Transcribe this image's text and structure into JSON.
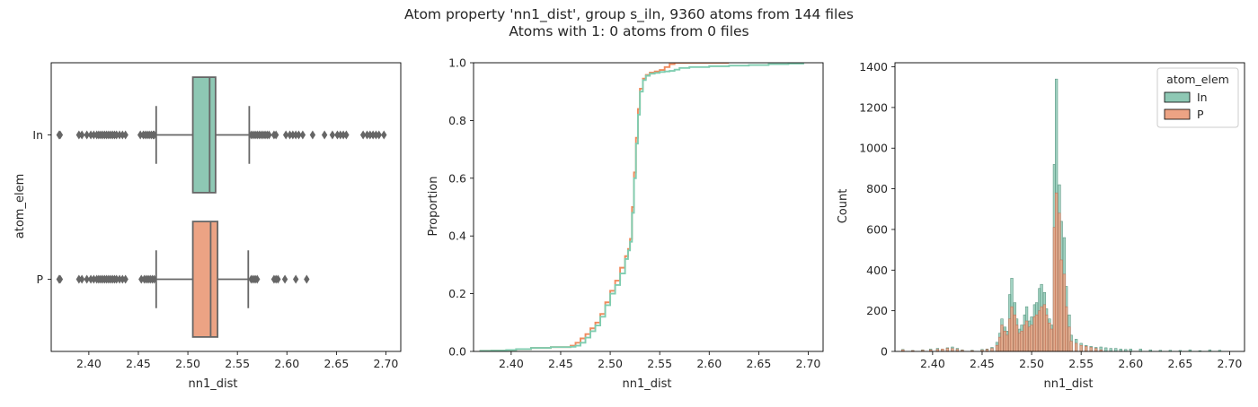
{
  "figure": {
    "title_line1": "Atom property 'nn1_dist', group s_iln, 9360 atoms from 144 files",
    "title_line2": "Atoms with 1: 0 atoms from 0 files"
  },
  "colors": {
    "In": "#8ec8b4",
    "P": "#eca384",
    "ecdf_In": "#7fcdb0",
    "ecdf_P": "#f08a5d",
    "whisker": "#666666"
  },
  "chart_data": [
    {
      "type": "box",
      "xlabel": "nn1_dist",
      "ylabel": "atom_elem",
      "xlim": [
        2.362,
        2.715
      ],
      "xticks": [
        "2.40",
        "2.45",
        "2.50",
        "2.55",
        "2.60",
        "2.65",
        "2.70"
      ],
      "categories": [
        "In",
        "P"
      ],
      "boxes": [
        {
          "name": "In",
          "whisker_low": 2.468,
          "q1": 2.505,
          "median": 2.522,
          "q3": 2.528,
          "whisker_high": 2.562,
          "outliers": [
            2.37,
            2.371,
            2.39,
            2.393,
            2.398,
            2.402,
            2.405,
            2.408,
            2.41,
            2.412,
            2.414,
            2.416,
            2.418,
            2.42,
            2.422,
            2.424,
            2.426,
            2.428,
            2.431,
            2.434,
            2.437,
            2.452,
            2.455,
            2.457,
            2.459,
            2.461,
            2.463,
            2.465,
            2.466,
            2.564,
            2.566,
            2.568,
            2.57,
            2.572,
            2.574,
            2.576,
            2.578,
            2.58,
            2.582,
            2.587,
            2.589,
            2.599,
            2.603,
            2.606,
            2.609,
            2.612,
            2.616,
            2.626,
            2.638,
            2.646,
            2.651,
            2.654,
            2.657,
            2.66,
            2.677,
            2.681,
            2.684,
            2.687,
            2.69,
            2.693,
            2.698
          ]
        },
        {
          "name": "P",
          "whisker_low": 2.468,
          "q1": 2.505,
          "median": 2.523,
          "q3": 2.53,
          "whisker_high": 2.561,
          "outliers": [
            2.37,
            2.371,
            2.39,
            2.393,
            2.398,
            2.402,
            2.405,
            2.408,
            2.41,
            2.412,
            2.414,
            2.416,
            2.418,
            2.42,
            2.422,
            2.424,
            2.426,
            2.428,
            2.431,
            2.434,
            2.437,
            2.453,
            2.456,
            2.458,
            2.46,
            2.462,
            2.464,
            2.466,
            2.564,
            2.566,
            2.568,
            2.57,
            2.587,
            2.589,
            2.591,
            2.598,
            2.609,
            2.62
          ]
        }
      ]
    },
    {
      "type": "line",
      "xlabel": "nn1_dist",
      "ylabel": "Proportion",
      "xlim": [
        2.362,
        2.715
      ],
      "ylim": [
        0,
        1
      ],
      "xticks": [
        "2.40",
        "2.45",
        "2.50",
        "2.55",
        "2.60",
        "2.65",
        "2.70"
      ],
      "yticks": [
        "0.0",
        "0.2",
        "0.4",
        "0.6",
        "0.8",
        "1.0"
      ],
      "series": [
        {
          "name": "In",
          "x": [
            2.368,
            2.38,
            2.395,
            2.405,
            2.42,
            2.44,
            2.46,
            2.465,
            2.47,
            2.475,
            2.48,
            2.485,
            2.49,
            2.495,
            2.5,
            2.505,
            2.51,
            2.515,
            2.518,
            2.52,
            2.522,
            2.524,
            2.526,
            2.528,
            2.53,
            2.533,
            2.536,
            2.54,
            2.545,
            2.55,
            2.555,
            2.56,
            2.565,
            2.57,
            2.58,
            2.6,
            2.62,
            2.64,
            2.66,
            2.68,
            2.695
          ],
          "y": [
            0.002,
            0.003,
            0.005,
            0.008,
            0.012,
            0.015,
            0.016,
            0.02,
            0.03,
            0.048,
            0.07,
            0.09,
            0.12,
            0.16,
            0.2,
            0.23,
            0.27,
            0.32,
            0.35,
            0.38,
            0.48,
            0.6,
            0.72,
            0.82,
            0.9,
            0.94,
            0.955,
            0.962,
            0.965,
            0.968,
            0.97,
            0.972,
            0.976,
            0.982,
            0.985,
            0.988,
            0.99,
            0.992,
            0.995,
            0.997,
            1.0
          ]
        },
        {
          "name": "P",
          "x": [
            2.368,
            2.38,
            2.395,
            2.405,
            2.42,
            2.44,
            2.46,
            2.465,
            2.47,
            2.475,
            2.48,
            2.485,
            2.49,
            2.495,
            2.5,
            2.505,
            2.51,
            2.515,
            2.518,
            2.52,
            2.522,
            2.524,
            2.526,
            2.528,
            2.53,
            2.533,
            2.536,
            2.54,
            2.545,
            2.55,
            2.555,
            2.56,
            2.565,
            2.57,
            2.58,
            2.59,
            2.6,
            2.61,
            2.62
          ],
          "y": [
            0.002,
            0.003,
            0.005,
            0.008,
            0.012,
            0.015,
            0.02,
            0.03,
            0.045,
            0.06,
            0.08,
            0.1,
            0.13,
            0.17,
            0.21,
            0.245,
            0.29,
            0.33,
            0.355,
            0.39,
            0.5,
            0.62,
            0.74,
            0.84,
            0.91,
            0.945,
            0.958,
            0.966,
            0.97,
            0.975,
            0.985,
            0.995,
            1.0,
            1.0,
            1.0,
            1.0,
            1.0,
            1.0,
            1.0
          ]
        }
      ]
    },
    {
      "type": "histogram",
      "xlabel": "nn1_dist",
      "ylabel": "Count",
      "xlim": [
        2.362,
        2.715
      ],
      "ylim": [
        0,
        1420
      ],
      "xticks": [
        "2.40",
        "2.45",
        "2.50",
        "2.55",
        "2.60",
        "2.65",
        "2.70"
      ],
      "yticks": [
        "0",
        "200",
        "400",
        "600",
        "800",
        "1000",
        "1200",
        "1400"
      ],
      "legend_title": "atom_elem",
      "legend_position": "top-right",
      "bin_width": 0.0025,
      "series": [
        {
          "name": "In",
          "x": [
            2.37,
            2.38,
            2.39,
            2.398,
            2.405,
            2.41,
            2.415,
            2.42,
            2.425,
            2.43,
            2.44,
            2.45,
            2.455,
            2.46,
            2.465,
            2.468,
            2.47,
            2.473,
            2.475,
            2.478,
            2.48,
            2.483,
            2.485,
            2.488,
            2.49,
            2.493,
            2.495,
            2.498,
            2.5,
            2.503,
            2.505,
            2.508,
            2.51,
            2.513,
            2.515,
            2.518,
            2.52,
            2.523,
            2.525,
            2.528,
            2.53,
            2.533,
            2.535,
            2.538,
            2.54,
            2.545,
            2.55,
            2.555,
            2.56,
            2.565,
            2.57,
            2.575,
            2.58,
            2.585,
            2.59,
            2.595,
            2.6,
            2.61,
            2.62,
            2.63,
            2.64,
            2.65,
            2.66,
            2.67,
            2.68,
            2.69
          ],
          "values": [
            10,
            5,
            8,
            12,
            15,
            10,
            18,
            22,
            15,
            8,
            6,
            10,
            12,
            20,
            45,
            90,
            160,
            120,
            100,
            280,
            360,
            240,
            160,
            110,
            130,
            180,
            220,
            150,
            170,
            230,
            240,
            310,
            330,
            290,
            210,
            160,
            130,
            920,
            1340,
            820,
            640,
            560,
            320,
            180,
            80,
            60,
            40,
            30,
            25,
            20,
            22,
            18,
            15,
            15,
            12,
            10,
            12,
            12,
            8,
            6,
            6,
            5,
            8,
            4,
            8,
            6
          ]
        },
        {
          "name": "P",
          "x": [
            2.37,
            2.38,
            2.39,
            2.398,
            2.405,
            2.41,
            2.415,
            2.42,
            2.425,
            2.43,
            2.44,
            2.45,
            2.455,
            2.46,
            2.465,
            2.468,
            2.47,
            2.473,
            2.475,
            2.478,
            2.48,
            2.483,
            2.485,
            2.488,
            2.49,
            2.493,
            2.495,
            2.498,
            2.5,
            2.503,
            2.505,
            2.508,
            2.51,
            2.513,
            2.515,
            2.518,
            2.52,
            2.523,
            2.525,
            2.528,
            2.53,
            2.533,
            2.535,
            2.538,
            2.54,
            2.545,
            2.55,
            2.555,
            2.56,
            2.565,
            2.57
          ],
          "values": [
            8,
            4,
            6,
            8,
            10,
            12,
            15,
            14,
            10,
            6,
            4,
            6,
            10,
            15,
            30,
            70,
            130,
            100,
            80,
            160,
            220,
            180,
            130,
            90,
            100,
            130,
            150,
            120,
            130,
            170,
            180,
            200,
            220,
            230,
            180,
            140,
            110,
            610,
            780,
            680,
            450,
            380,
            220,
            120,
            50,
            40,
            30,
            25,
            20,
            15,
            8
          ]
        }
      ]
    }
  ]
}
